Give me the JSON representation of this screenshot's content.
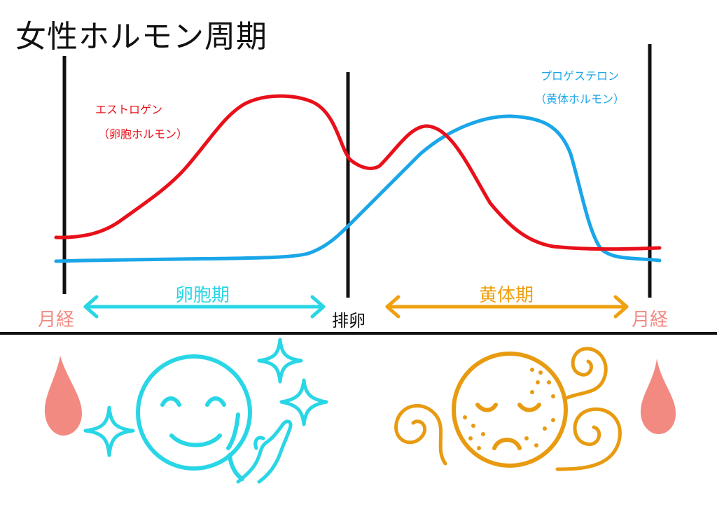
{
  "title": "女性ホルモン周期",
  "labels": {
    "estrogen_name": "エストロゲン",
    "estrogen_sub": "（卵胞ホルモン）",
    "progesterone_name": "プロゲステロン",
    "progesterone_sub": "（黄体ホルモン）",
    "follicular_phase": "卵胞期",
    "luteal_phase": "黄体期",
    "ovulation": "排卵",
    "menstruation_left": "月経",
    "menstruation_right": "月経"
  },
  "colors": {
    "estrogen": "#e8101a",
    "progesterone": "#1aa6e8",
    "follicular": "#29d6e6",
    "luteal": "#e89b10",
    "menstruation": "#f28a82",
    "ink": "#111111"
  },
  "icons": {
    "happy_face": "smiling-face-icon",
    "sad_face": "tired-face-icon",
    "sparkle": "sparkle-icon",
    "swirl": "swirl-icon",
    "drop": "blood-drop-icon",
    "hand": "hand-icon"
  }
}
